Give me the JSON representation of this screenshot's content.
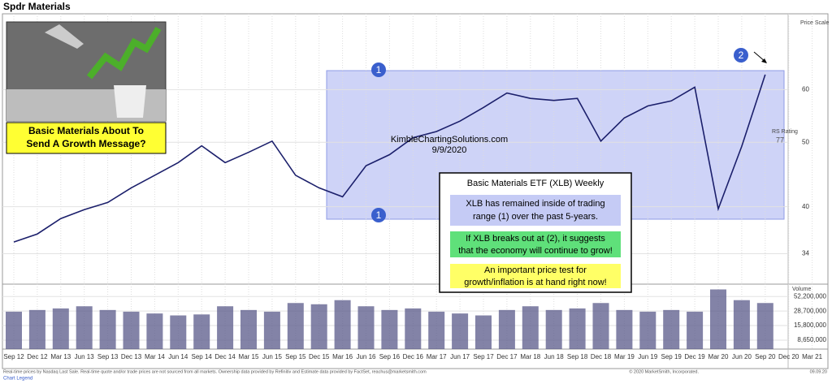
{
  "chart_data": [
    {
      "type": "line",
      "title": "Spdr Materials",
      "color": "#1b1f6b",
      "log_scale": true,
      "grid": true,
      "categories": [
        "Sep 12",
        "Dec 12",
        "Mar 13",
        "Jun 13",
        "Sep 13",
        "Dec 13",
        "Mar 14",
        "Jun 14",
        "Sep 14",
        "Dec 14",
        "Mar 15",
        "Jun 15",
        "Sep 15",
        "Dec 15",
        "Mar 16",
        "Jun 16",
        "Sep 16",
        "Dec 16",
        "Mar 17",
        "Jun 17",
        "Sep 17",
        "Dec 17",
        "Mar 18",
        "Jun 18",
        "Sep 18",
        "Dec 18",
        "Mar 19",
        "Jun 19",
        "Sep 19",
        "Dec 19",
        "Mar 20",
        "Jun 20",
        "Sep 20",
        "Dec 20",
        "Mar 21"
      ],
      "values": [
        35.4,
        36.4,
        38.4,
        39.6,
        40.6,
        42.7,
        44.6,
        46.6,
        49.4,
        46.6,
        48.3,
        50.2,
        44.6,
        42.7,
        41.4,
        46.1,
        47.9,
        50.8,
        51.9,
        53.8,
        56.4,
        59.3,
        58.2,
        57.8,
        58.2,
        50.2,
        54.4,
        56.7,
        57.7,
        60.5,
        39.7,
        49.3,
        63.2,
        null,
        null
      ],
      "ylim": [
        30.6,
        78
      ],
      "yticks": [
        34,
        40,
        50,
        60
      ],
      "y_axis_label": "Price Scale",
      "rs_label": "RS Rating",
      "rs_value": 77,
      "watermark": "KimbleChartingSolutions.com",
      "date": "9/9/2020",
      "markers": [
        "1",
        "1",
        "2"
      ],
      "picture_caption": [
        "Basic Materials About To",
        "Send A Growth Message?"
      ],
      "info_box": {
        "title": "Basic Materials ETF (XLB) Weekly",
        "blue": [
          "XLB has remained inside of trading",
          "range (1) over the past 5-years."
        ],
        "green": [
          "If XLB breaks out at (2), it suggests",
          "that the economy will continue to grow!"
        ],
        "yellow": [
          "An important price test for",
          "growth/inflation is at hand right now!"
        ]
      }
    },
    {
      "type": "bar",
      "title": "Volume",
      "color": "#5a5a8a",
      "log_scale": true,
      "values": [
        28000000,
        30000000,
        32000000,
        35000000,
        30000000,
        28000000,
        26000000,
        24000000,
        25000000,
        35000000,
        30000000,
        28000000,
        40000000,
        38000000,
        45000000,
        35000000,
        30000000,
        32000000,
        28000000,
        26000000,
        24000000,
        30000000,
        35000000,
        30000000,
        32000000,
        40000000,
        30000000,
        28000000,
        30000000,
        28000000,
        70000000,
        45000000,
        40000000,
        null,
        null
      ],
      "ylim": [
        6000000,
        87000000
      ],
      "yticks": [
        {
          "value": 52200000,
          "label": "52,200,000"
        },
        {
          "value": 28700000,
          "label": "28,700,000"
        },
        {
          "value": 15800000,
          "label": "15,800,000"
        },
        {
          "value": 8650000,
          "label": "8,650,000"
        }
      ]
    }
  ],
  "footer": {
    "disclaimer": "Real-time prices by Nasdaq Last Sale. Real-time quote and/or trade prices are not sourced from all markets. Ownership data provided by Refinitiv and Estimate data provided by FactSet, reachus@marketsmith.com",
    "copyright": "© 2020 MarketSmith, Incorporated.",
    "stamp": "09.09.20",
    "legend_link": "Chart Legend"
  }
}
